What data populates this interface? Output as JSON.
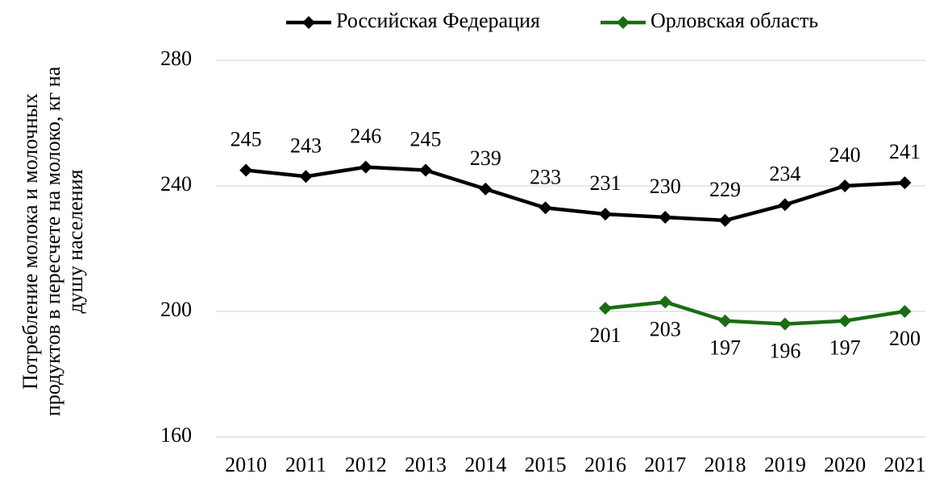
{
  "chart_data": {
    "type": "line",
    "y_label": [
      "Потребление молока и молочных",
      "продуктов в пересчете на молоко, кг на",
      "душу населения"
    ],
    "categories": [
      "2010",
      "2011",
      "2012",
      "2013",
      "2014",
      "2015",
      "2016",
      "2017",
      "2018",
      "2019",
      "2020",
      "2021"
    ],
    "series": [
      {
        "name": "Российская Федерация",
        "color": "#000000",
        "label_position": "above",
        "values": [
          245,
          243,
          246,
          245,
          239,
          233,
          231,
          230,
          229,
          234,
          240,
          241
        ]
      },
      {
        "name": "Орловская область",
        "color": "#1a6e12",
        "label_position": "below",
        "values": [
          null,
          null,
          null,
          null,
          null,
          null,
          201,
          203,
          197,
          196,
          197,
          200
        ]
      }
    ],
    "ylim": [
      160,
      280
    ],
    "yticks": [
      160,
      200,
      240,
      280
    ],
    "grid": true,
    "legend": "top"
  }
}
